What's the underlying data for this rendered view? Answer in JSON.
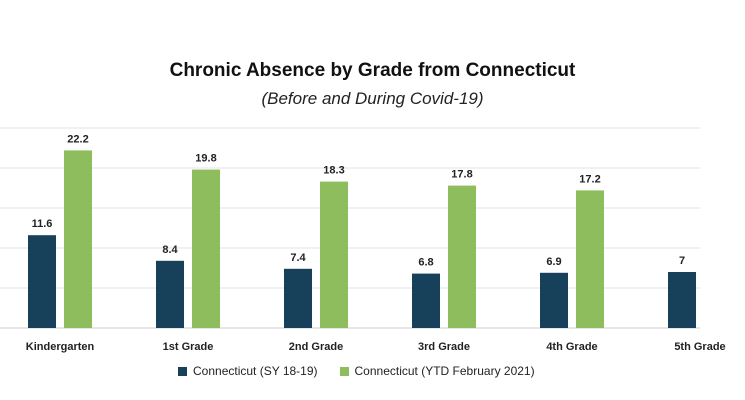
{
  "chart_data": {
    "type": "bar",
    "title": "Chronic Absence by Grade from Connecticut",
    "subtitle": "(Before and During Covid-19)",
    "categories": [
      "Kindergarten",
      "1st Grade",
      "2nd Grade",
      "3rd Grade",
      "4th Grade",
      "5th Grade"
    ],
    "series": [
      {
        "name": "Connecticut (SY 18-19)",
        "color": "#17405a",
        "values": [
          11.6,
          8.4,
          7.4,
          6.8,
          6.9,
          7
        ]
      },
      {
        "name": "Connecticut (YTD February 2021)",
        "color": "#8dbd5c",
        "values": [
          22.2,
          19.8,
          18.3,
          17.8,
          17.2,
          null
        ]
      }
    ],
    "ylim": [
      0,
      25
    ],
    "grid": true,
    "legend_position": "bottom"
  }
}
